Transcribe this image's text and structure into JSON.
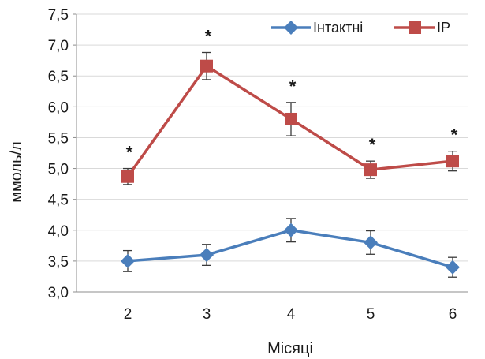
{
  "chart_data": {
    "type": "line",
    "xlabel": "Місяці",
    "ylabel": "ммоль/л",
    "categories": [
      "2",
      "3",
      "4",
      "5",
      "6"
    ],
    "ylim": [
      3.0,
      7.5
    ],
    "yticks": [
      3.0,
      3.5,
      4.0,
      4.5,
      5.0,
      5.5,
      6.0,
      6.5,
      7.0,
      7.5
    ],
    "ytick_labels": [
      "3,0",
      "3,5",
      "4,0",
      "4,5",
      "5,0",
      "5,5",
      "6,0",
      "6,5",
      "7,0",
      "7,5"
    ],
    "grid": "horizontal",
    "legend_position": "top-right",
    "series": [
      {
        "name": "Інтактні",
        "color": "#4a7ebb",
        "marker": "diamond",
        "values": [
          3.5,
          3.6,
          4.0,
          3.8,
          3.4
        ],
        "errors": [
          0.17,
          0.17,
          0.19,
          0.19,
          0.16
        ]
      },
      {
        "name": "ІР",
        "color": "#be4b48",
        "marker": "square",
        "values": [
          4.87,
          6.66,
          5.8,
          4.98,
          5.12
        ],
        "errors": [
          0.13,
          0.22,
          0.27,
          0.14,
          0.16
        ],
        "annotations": [
          "*",
          "*",
          "*",
          "*",
          "*"
        ]
      }
    ]
  }
}
